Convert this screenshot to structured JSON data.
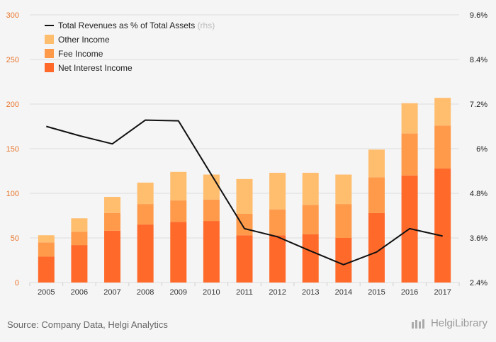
{
  "chart_data": {
    "type": "bar",
    "stacked": true,
    "categories": [
      "2005",
      "2006",
      "2007",
      "2008",
      "2009",
      "2010",
      "2011",
      "2012",
      "2013",
      "2014",
      "2015",
      "2016",
      "2017"
    ],
    "series": [
      {
        "name": "Net Interest Income",
        "color": "#ff6a2b",
        "values": [
          29,
          42,
          58,
          65,
          68,
          69,
          53,
          53,
          54,
          50,
          78,
          120,
          128
        ]
      },
      {
        "name": "Fee Income",
        "color": "#ff9a4a",
        "values": [
          16,
          15,
          20,
          23,
          24,
          24,
          24,
          29,
          33,
          38,
          40,
          47,
          48
        ]
      },
      {
        "name": "Other Income",
        "color": "#ffbd6e",
        "values": [
          8,
          15,
          18,
          24,
          32,
          28,
          39,
          41,
          36,
          33,
          31,
          34,
          31
        ]
      }
    ],
    "line_series": {
      "name": "Total Revenues as % of Total Assets",
      "note": "(rhs)",
      "color": "#111111",
      "values": [
        6.6,
        6.35,
        6.13,
        6.77,
        6.75,
        5.3,
        3.85,
        3.63,
        3.25,
        2.88,
        3.22,
        3.85,
        3.65
      ]
    },
    "y_left": {
      "ticks": [
        "0",
        "50",
        "100",
        "150",
        "200",
        "250",
        "300"
      ],
      "range": [
        0,
        300
      ],
      "color": "#e8762c"
    },
    "y_right": {
      "ticks": [
        "2.4%",
        "3.6%",
        "4.8%",
        "6%",
        "7.2%",
        "8.4%",
        "9.6%"
      ],
      "range": [
        2.4,
        9.6
      ],
      "color": "#222222"
    },
    "legend_position": "top-left",
    "grid": true
  },
  "footer": {
    "source": "Source: Company Data, Helgi Analytics",
    "brand": "HelgiLibrary"
  }
}
